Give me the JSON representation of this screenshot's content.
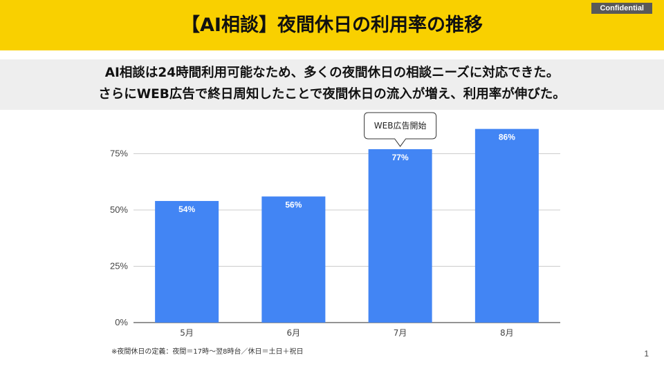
{
  "header": {
    "title": "【AI相談】夜間休日の利用率の推移",
    "confidential": "Confidential"
  },
  "summary": {
    "line1": "AI相談は24時間利用可能なため、多くの夜間休日の相談ニーズに対応できた。",
    "line2": "さらにWEB広告で終日周知したことで夜間休日の流入が増え、利用率が伸びた。"
  },
  "colors": {
    "accent": "#f9d000",
    "bar": "#4285f4",
    "band": "#eeeeee"
  },
  "chart_data": {
    "type": "bar",
    "title": "",
    "categories": [
      "5月",
      "6月",
      "7月",
      "8月"
    ],
    "values": [
      54,
      56,
      77,
      86
    ],
    "data_labels": [
      "54%",
      "56%",
      "77%",
      "86%"
    ],
    "ylim": [
      0,
      100
    ],
    "yticks": [
      0,
      25,
      50,
      75
    ],
    "ytick_labels": [
      "0%",
      "25%",
      "50%",
      "75%"
    ],
    "xlabel": "",
    "ylabel": "",
    "grid": true,
    "annotations": [
      {
        "category_index": 2,
        "text": "WEB広告開始"
      }
    ]
  },
  "footnote": "※夜間休日の定義：夜間＝17時～翌8時台／休日＝土日＋祝日",
  "page_number": "1"
}
